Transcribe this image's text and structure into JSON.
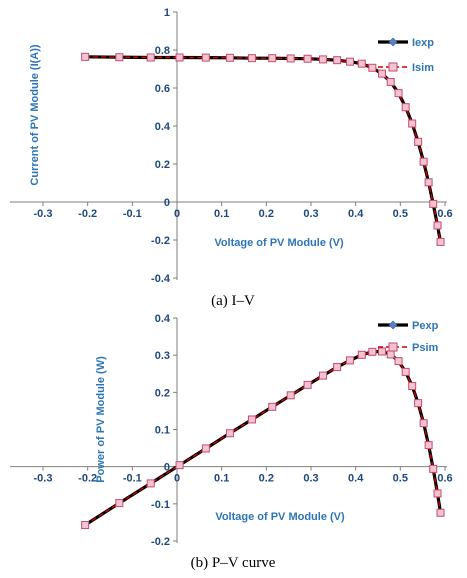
{
  "chart_data": [
    {
      "type": "line",
      "caption": "(a) I–V",
      "xlabel": "Voltage of PV Module (V)",
      "ylabel": "Current of PV Module (I(A))",
      "xlim": [
        -0.3,
        0.6
      ],
      "ylim": [
        -0.4,
        1.0
      ],
      "xticks": [
        "-0.3",
        "-0.2",
        "-0.1",
        "0",
        "0.1",
        "0.2",
        "0.3",
        "0.4",
        "0.5",
        "0.6"
      ],
      "yticks": [
        "-0.4",
        "-0.2",
        "0",
        "0.2",
        "0.4",
        "0.6",
        "0.8",
        "1"
      ],
      "grid": false,
      "legend_position": "top-right",
      "series": [
        {
          "name": "Iexp",
          "color": "#000000",
          "marker": "diamond",
          "x": [
            -0.2057,
            -0.1291,
            -0.0588,
            0.0057,
            0.0646,
            0.1185,
            0.1678,
            0.2132,
            0.2545,
            0.2924,
            0.3269,
            0.3585,
            0.3873,
            0.4137,
            0.4373,
            0.459,
            0.4784,
            0.496,
            0.5119,
            0.5265,
            0.5398,
            0.5521,
            0.5633,
            0.5736,
            0.5833,
            0.59
          ],
          "y": [
            0.764,
            0.762,
            0.7605,
            0.7605,
            0.76,
            0.759,
            0.757,
            0.757,
            0.7555,
            0.754,
            0.7505,
            0.7465,
            0.7385,
            0.728,
            0.7065,
            0.6755,
            0.632,
            0.573,
            0.499,
            0.413,
            0.3165,
            0.212,
            0.1035,
            -0.01,
            -0.1235,
            -0.21
          ]
        },
        {
          "name": "Isim",
          "color": "#d00000",
          "marker": "square",
          "x": [
            -0.2057,
            -0.1291,
            -0.0588,
            0.0057,
            0.0646,
            0.1185,
            0.1678,
            0.2132,
            0.2545,
            0.2924,
            0.3269,
            0.3585,
            0.3873,
            0.4137,
            0.4373,
            0.459,
            0.4784,
            0.496,
            0.5119,
            0.5265,
            0.5398,
            0.5521,
            0.5633,
            0.5736,
            0.5833,
            0.59
          ],
          "y": [
            0.764,
            0.762,
            0.7605,
            0.7605,
            0.76,
            0.759,
            0.757,
            0.757,
            0.7555,
            0.754,
            0.7505,
            0.7465,
            0.7385,
            0.728,
            0.7065,
            0.6755,
            0.632,
            0.573,
            0.499,
            0.413,
            0.3165,
            0.212,
            0.1035,
            -0.01,
            -0.1235,
            -0.21
          ]
        }
      ]
    },
    {
      "type": "line",
      "caption": "(b) P–V curve",
      "xlabel": "Voltage of PV Module (V)",
      "ylabel": "Power of PV Module (W)",
      "xlim": [
        -0.3,
        0.6
      ],
      "ylim": [
        -0.2,
        0.4
      ],
      "xticks": [
        "-0.3",
        "-0.2",
        "-0.1",
        "0",
        "0.1",
        "0.2",
        "0.3",
        "0.4",
        "0.5",
        "0.6"
      ],
      "yticks": [
        "-0.2",
        "-0.1",
        "0",
        "0.1",
        "0.2",
        "0.3",
        "0.4"
      ],
      "grid": false,
      "legend_position": "top-right",
      "series": [
        {
          "name": "Pexp",
          "color": "#000000",
          "marker": "diamond",
          "x": [
            -0.2057,
            -0.1291,
            -0.0588,
            0.0057,
            0.0646,
            0.1185,
            0.1678,
            0.2132,
            0.2545,
            0.2924,
            0.3269,
            0.3585,
            0.3873,
            0.4137,
            0.4373,
            0.459,
            0.4784,
            0.496,
            0.5119,
            0.5265,
            0.5398,
            0.5521,
            0.5633,
            0.5736,
            0.5833,
            0.59
          ],
          "y": [
            -0.157,
            -0.098,
            -0.045,
            0.004,
            0.049,
            0.09,
            0.127,
            0.161,
            0.192,
            0.22,
            0.245,
            0.268,
            0.286,
            0.301,
            0.309,
            0.31,
            0.302,
            0.284,
            0.255,
            0.217,
            0.171,
            0.117,
            0.058,
            -0.006,
            -0.072,
            -0.124
          ]
        },
        {
          "name": "Psim",
          "color": "#d00000",
          "marker": "square",
          "x": [
            -0.2057,
            -0.1291,
            -0.0588,
            0.0057,
            0.0646,
            0.1185,
            0.1678,
            0.2132,
            0.2545,
            0.2924,
            0.3269,
            0.3585,
            0.3873,
            0.4137,
            0.4373,
            0.459,
            0.4784,
            0.496,
            0.5119,
            0.5265,
            0.5398,
            0.5521,
            0.5633,
            0.5736,
            0.5833,
            0.59
          ],
          "y": [
            -0.157,
            -0.098,
            -0.045,
            0.004,
            0.049,
            0.09,
            0.127,
            0.161,
            0.192,
            0.22,
            0.245,
            0.268,
            0.286,
            0.301,
            0.309,
            0.31,
            0.302,
            0.284,
            0.255,
            0.217,
            0.171,
            0.117,
            0.058,
            -0.006,
            -0.072,
            -0.124
          ]
        }
      ]
    }
  ]
}
